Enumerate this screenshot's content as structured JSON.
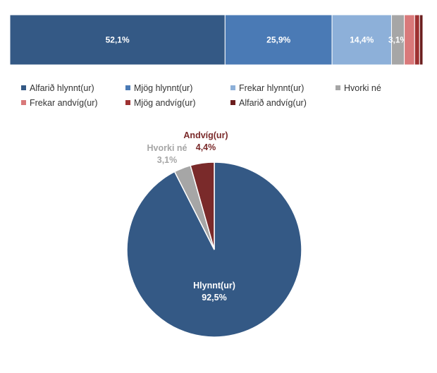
{
  "chart_data": [
    {
      "type": "bar",
      "orientation": "horizontal",
      "stacked": true,
      "normalized_to": 100,
      "series": [
        {
          "name": "Alfarið hlynnt(ur)",
          "value": 52.1,
          "label": "52,1%",
          "color": "#345985"
        },
        {
          "name": "Mjög hlynnt(ur)",
          "value": 25.9,
          "label": "25,9%",
          "color": "#4a7ab5"
        },
        {
          "name": "Frekar hlynnt(ur)",
          "value": 14.4,
          "label": "14,4%",
          "color": "#8db0d9"
        },
        {
          "name": "Hvorki né",
          "value": 3.1,
          "label": "3,1%",
          "color": "#a6a6a6"
        },
        {
          "name": "Frekar andvíg(ur)",
          "value": 2.5,
          "label": "",
          "color": "#d9797a"
        },
        {
          "name": "Mjög andvíg(ur)",
          "value": 1.2,
          "label": "",
          "color": "#9e3232"
        },
        {
          "name": "Alfarið andvíg(ur)",
          "value": 0.8,
          "label": "",
          "color": "#6b1e1e"
        }
      ],
      "legend": {
        "position": "bottom",
        "columns": 4
      },
      "grid": false
    },
    {
      "type": "pie",
      "slices": [
        {
          "name": "Hlynnt(ur)",
          "value": 92.5,
          "label": "92,5%",
          "color": "#345985",
          "label_color": "#ffffff"
        },
        {
          "name": "Hvorki né",
          "value": 3.1,
          "label": "3,1%",
          "color": "#a6a6a6",
          "label_color": "#a6a6a6"
        },
        {
          "name": "Andvíg(ur)",
          "value": 4.4,
          "label": "4,4%",
          "color": "#7a2a2a",
          "label_color": "#7a2a2a"
        }
      ],
      "start": "top",
      "direction": "clockwise",
      "legend": "none"
    }
  ]
}
